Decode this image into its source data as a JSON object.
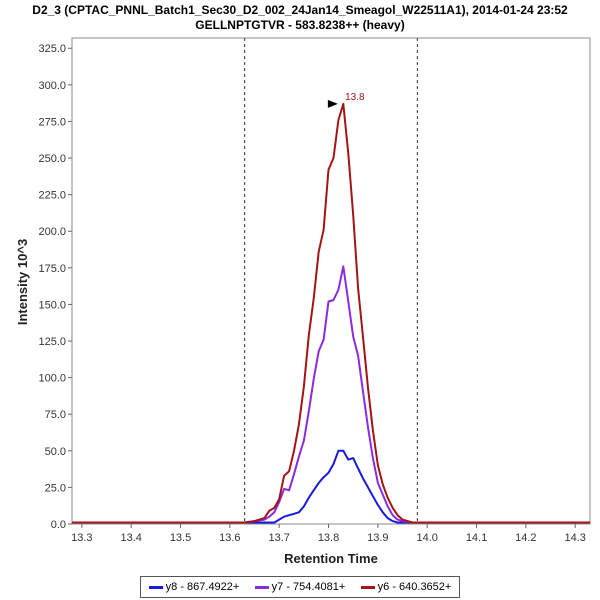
{
  "chart_data": {
    "type": "line",
    "title": "D2_3 (CPTAC_PNNL_Batch1_Sec30_D2_002_24Jan14_Smeagol_W22511A1), 2014-01-24 23:52",
    "subtitle": "GELLNPTGTVR - 583.8238++ (heavy)",
    "xlabel": "Retention Time",
    "ylabel": "Intensity 10^3",
    "xlim": [
      13.28,
      14.33
    ],
    "ylim": [
      0,
      332
    ],
    "xticks": [
      "13.3",
      "13.4",
      "13.5",
      "13.6",
      "13.7",
      "13.8",
      "13.9",
      "14.0",
      "14.1",
      "14.2",
      "14.3"
    ],
    "yticks": [
      "0.0",
      "25.0",
      "50.0",
      "75.0",
      "100.0",
      "125.0",
      "150.0",
      "175.0",
      "200.0",
      "225.0",
      "250.0",
      "275.0",
      "300.0",
      "325.0"
    ],
    "vlines": [
      13.63,
      13.98
    ],
    "peak_annotation": {
      "text": "13.8",
      "x": 13.825,
      "y": 287
    },
    "grid": false,
    "legend_position": "bottom",
    "series": [
      {
        "name": "y8 - 867.4922+",
        "color": "#1a1adb",
        "x": [
          13.28,
          13.64,
          13.69,
          13.7,
          13.71,
          13.72,
          13.73,
          13.74,
          13.75,
          13.76,
          13.77,
          13.78,
          13.79,
          13.8,
          13.81,
          13.82,
          13.83,
          13.84,
          13.85,
          13.86,
          13.87,
          13.88,
          13.89,
          13.9,
          13.91,
          13.92,
          13.93,
          13.94,
          13.95,
          13.96,
          14.33
        ],
        "y": [
          1,
          1,
          1,
          3,
          5,
          6,
          7,
          8,
          12,
          18,
          23,
          28,
          32,
          35,
          41,
          50,
          50,
          44,
          45,
          38,
          31,
          25,
          19,
          13,
          8,
          4,
          2,
          1,
          1,
          1,
          1
        ]
      },
      {
        "name": "y7 - 754.4081+",
        "color": "#8a2be2",
        "x": [
          13.28,
          13.63,
          13.65,
          13.67,
          13.68,
          13.69,
          13.7,
          13.71,
          13.72,
          13.73,
          13.74,
          13.75,
          13.76,
          13.77,
          13.78,
          13.79,
          13.8,
          13.81,
          13.82,
          13.83,
          13.84,
          13.85,
          13.86,
          13.87,
          13.88,
          13.89,
          13.9,
          13.91,
          13.92,
          13.93,
          13.94,
          13.95,
          13.97,
          14.33
        ],
        "y": [
          1,
          1,
          2,
          3,
          5,
          8,
          15,
          24,
          23,
          34,
          46,
          57,
          77,
          99,
          118,
          126,
          152,
          153,
          160,
          176,
          152,
          128,
          115,
          90,
          66,
          45,
          28,
          20,
          12,
          6,
          3,
          2,
          1,
          1
        ]
      },
      {
        "name": "y6 - 640.3652+",
        "color": "#a31515",
        "x": [
          13.28,
          13.63,
          13.65,
          13.67,
          13.68,
          13.69,
          13.7,
          13.71,
          13.72,
          13.73,
          13.74,
          13.75,
          13.76,
          13.77,
          13.78,
          13.79,
          13.8,
          13.81,
          13.82,
          13.83,
          13.84,
          13.85,
          13.86,
          13.87,
          13.88,
          13.89,
          13.9,
          13.91,
          13.92,
          13.93,
          13.94,
          13.95,
          13.97,
          14.33
        ],
        "y": [
          1,
          1,
          2,
          4,
          9,
          11,
          17,
          33,
          36,
          50,
          68,
          94,
          129,
          154,
          186,
          201,
          242,
          250,
          276,
          287,
          253,
          211,
          161,
          127,
          93,
          64,
          40,
          27,
          18,
          11,
          6,
          3,
          1,
          1
        ]
      }
    ]
  }
}
